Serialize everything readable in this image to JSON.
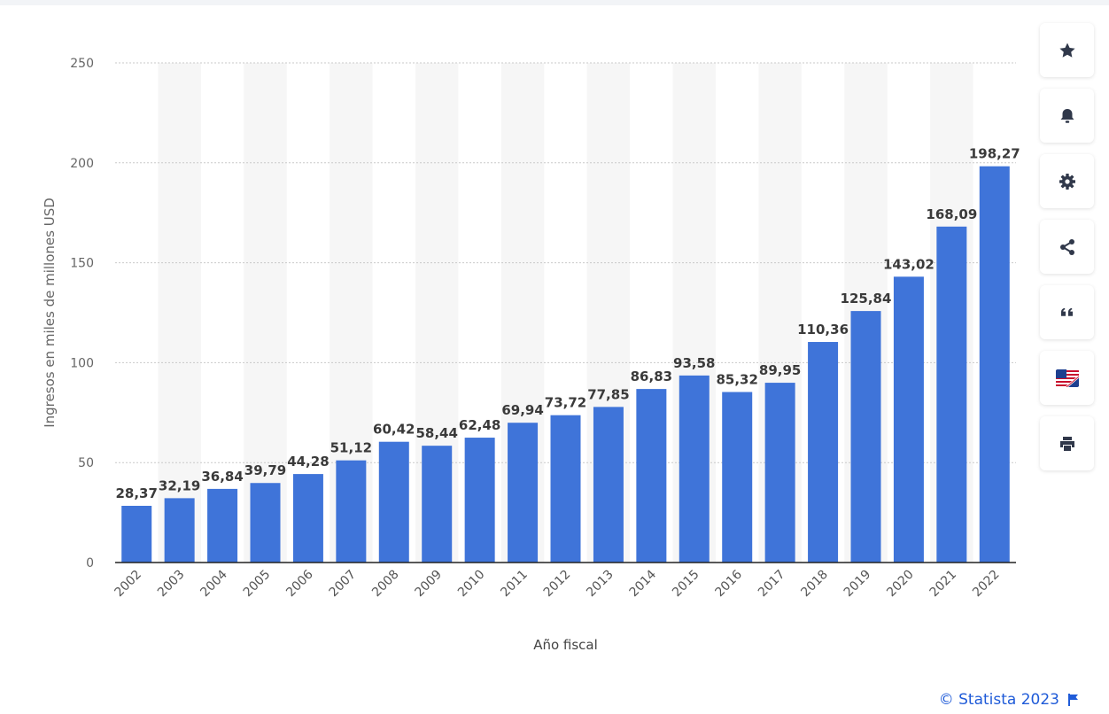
{
  "chart_data": {
    "type": "bar",
    "categories": [
      "2002",
      "2003",
      "2004",
      "2005",
      "2006",
      "2007",
      "2008",
      "2009",
      "2010",
      "2011",
      "2012",
      "2013",
      "2014",
      "2015",
      "2016",
      "2017",
      "2018",
      "2019",
      "2020",
      "2021",
      "2022"
    ],
    "values": [
      28.37,
      32.19,
      36.84,
      39.79,
      44.28,
      51.12,
      60.42,
      58.44,
      62.48,
      69.94,
      73.72,
      77.85,
      86.83,
      93.58,
      85.32,
      89.95,
      110.36,
      125.84,
      143.02,
      168.09,
      198.27
    ],
    "value_labels": [
      "28,37",
      "32,19",
      "36,84",
      "39,79",
      "44,28",
      "51,12",
      "60,42",
      "58,44",
      "62,48",
      "69,94",
      "73,72",
      "77,85",
      "86,83",
      "93,58",
      "85,32",
      "89,95",
      "110,36",
      "125,84",
      "143,02",
      "168,09",
      "198,27"
    ],
    "yticks": [
      "0",
      "50",
      "100",
      "150",
      "200",
      "250"
    ],
    "ylim": [
      0,
      250
    ],
    "xlabel": "Año fiscal",
    "ylabel": "Ingresos en miles de millones USD",
    "title": "",
    "grid": true,
    "bar_color": "#3f74d9"
  },
  "toolbar": {
    "buttons": [
      "star-icon",
      "bell-icon",
      "gear-icon",
      "share-icon",
      "quote-icon",
      "flag-uk-us-icon",
      "print-icon"
    ]
  },
  "credit": {
    "text": "© Statista 2023"
  },
  "colors": {
    "accent": "#1f5bd8",
    "bar": "#3f74d9",
    "band": "#f6f6f6",
    "grid": "#c9c9c9"
  }
}
